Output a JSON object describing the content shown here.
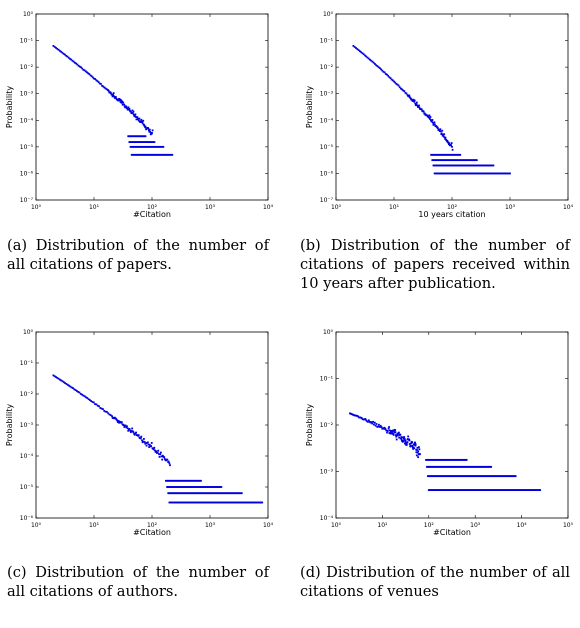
{
  "chart_data": [
    {
      "type": "scatter",
      "panel": "a",
      "xlabel": "#Citation",
      "ylabel": "Probability",
      "xscale": "log",
      "yscale": "log",
      "xlim_exp": [
        0,
        4
      ],
      "ylim_exp": [
        -7,
        0
      ],
      "x_ticks": [
        "10⁰",
        "10¹",
        "10²",
        "10³",
        "10⁴"
      ],
      "y_ticks": [
        "10⁻⁷",
        "10⁻⁶",
        "10⁻⁵",
        "10⁻⁴",
        "10⁻³",
        "10⁻²",
        "10⁻¹",
        "10⁰"
      ],
      "color": "#0000dd",
      "curve": {
        "start": [
          0.3,
          -1.2
        ],
        "bend": [
          1.3,
          -2.85
        ],
        "end": [
          2.0,
          -4.5
        ]
      },
      "tail": {
        "x_range": [
          1.65,
          2.35
        ],
        "floor": -5.3,
        "levels": [
          -5.3,
          -5.0,
          -4.82,
          -4.6
        ]
      }
    },
    {
      "type": "scatter",
      "panel": "b",
      "xlabel": "10 years citation",
      "ylabel": "Probability",
      "xscale": "log",
      "yscale": "log",
      "xlim_exp": [
        0,
        4
      ],
      "ylim_exp": [
        -7,
        0
      ],
      "x_ticks": [
        "10⁰",
        "10¹",
        "10²",
        "10³",
        "10⁴"
      ],
      "y_ticks": [
        "10⁻⁷",
        "10⁻⁶",
        "10⁻⁵",
        "10⁻⁴",
        "10⁻³",
        "10⁻²",
        "10⁻¹",
        "10⁰"
      ],
      "color": "#0000dd",
      "curve": {
        "start": [
          0.3,
          -1.2
        ],
        "bend": [
          1.3,
          -2.95
        ],
        "end": [
          2.0,
          -5.0
        ]
      },
      "tail": {
        "x_range": [
          1.7,
          3.0
        ],
        "floor": -6.0,
        "levels": [
          -6.0,
          -5.7,
          -5.5,
          -5.3
        ]
      }
    },
    {
      "type": "scatter",
      "panel": "c",
      "xlabel": "#Citation",
      "ylabel": "Probability",
      "xscale": "log",
      "yscale": "log",
      "xlim_exp": [
        0,
        4
      ],
      "ylim_exp": [
        -6,
        0
      ],
      "x_ticks": [
        "10⁰",
        "10¹",
        "10²",
        "10³",
        "10⁴"
      ],
      "y_ticks": [
        "10⁻⁶",
        "10⁻⁵",
        "10⁻⁴",
        "10⁻³",
        "10⁻²",
        "10⁻¹",
        "10⁰"
      ],
      "color": "#0000dd",
      "curve": {
        "start": [
          0.3,
          -1.4
        ],
        "bend": [
          1.3,
          -2.6
        ],
        "end": [
          2.3,
          -4.2
        ]
      },
      "tail": {
        "x_range": [
          2.3,
          3.9
        ],
        "floor": -5.5,
        "levels": [
          -5.5,
          -5.2,
          -5.0,
          -4.8
        ]
      }
    },
    {
      "type": "scatter",
      "panel": "d",
      "xlabel": "#Citation",
      "ylabel": "Probability",
      "xscale": "log",
      "yscale": "log",
      "xlim_exp": [
        0,
        5
      ],
      "ylim_exp": [
        -4,
        0
      ],
      "x_ticks": [
        "10⁰",
        "10¹",
        "10²",
        "10³",
        "10⁴",
        "10⁵"
      ],
      "y_ticks": [
        "10⁻⁴",
        "10⁻³",
        "10⁻²",
        "10⁻¹",
        "10⁰"
      ],
      "color": "#0000dd",
      "curve": {
        "start": [
          0.3,
          -1.75
        ],
        "bend": [
          1.2,
          -2.1
        ],
        "end": [
          1.8,
          -2.55
        ]
      },
      "tail": {
        "x_range": [
          2.0,
          4.4
        ],
        "floor": -3.4,
        "levels": [
          -3.4,
          -3.1,
          -2.9,
          -2.75
        ]
      }
    }
  ],
  "captions": {
    "a": "(a) Distribution of the number of all citations of papers.",
    "b": "(b) Distribution of the number of citations of papers received within 10 years after publication.",
    "c": "(c) Distribution of the number of all citations of authors.",
    "d": "(d) Distribution of the number of all citations of venues"
  }
}
